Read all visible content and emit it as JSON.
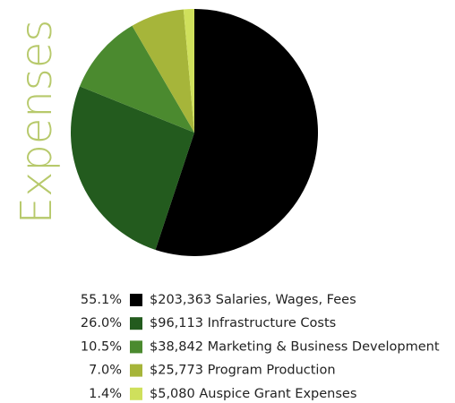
{
  "chart_data": {
    "type": "pie",
    "title": "Expenses",
    "categories": [
      "$203,363 Salaries, Wages, Fees",
      "$96,113 Infrastructure Costs",
      "$38,842 Marketing & Business Development",
      "$25,773 Program Production",
      "$5,080 Auspice Grant Expenses"
    ],
    "values": [
      55.1,
      26.0,
      10.5,
      7.0,
      1.4
    ],
    "value_labels": [
      "55.1%",
      "26.0%",
      "10.5%",
      "7.0%",
      "1.4%"
    ],
    "colors": [
      "#000000",
      "#235b1e",
      "#4b8a2f",
      "#a6b53a",
      "#cfe05c"
    ]
  }
}
